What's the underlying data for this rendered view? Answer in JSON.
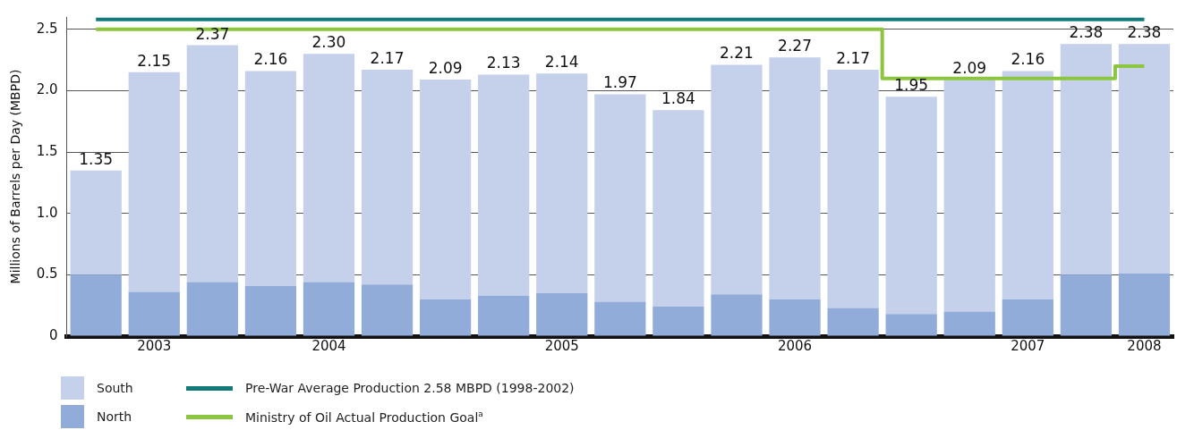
{
  "chart_data": {
    "type": "bar",
    "stacked": true,
    "ylabel": "Millions of Barrels per Day (MBPD)",
    "categories": [
      null,
      "2003",
      null,
      null,
      "2004",
      null,
      null,
      null,
      "2005",
      null,
      null,
      null,
      "2006",
      null,
      null,
      null,
      "2007",
      null,
      "2008"
    ],
    "ylim": [
      0,
      2.6
    ],
    "yticks": [
      0,
      0.5,
      {
        "value": 1,
        "label": "1.0"
      },
      1.5,
      {
        "value": 2,
        "label": "2.0"
      },
      2.5
    ],
    "grid": "y",
    "legend": "bottom",
    "marker": "none",
    "series": [
      {
        "name": "North",
        "color": "#92acd9",
        "values": [
          0.5,
          0.36,
          0.44,
          0.41,
          0.44,
          0.42,
          0.3,
          0.33,
          0.35,
          0.28,
          0.24,
          0.34,
          0.3,
          0.23,
          0.18,
          0.2,
          0.3,
          0.5,
          0.51
        ]
      },
      {
        "name": "South",
        "color": "#c5d0ea",
        "values": [
          0.85,
          1.79,
          1.93,
          1.75,
          1.86,
          1.75,
          1.79,
          1.8,
          1.79,
          1.69,
          1.6,
          1.87,
          1.97,
          1.94,
          1.77,
          1.89,
          1.86,
          1.88,
          1.87
        ]
      },
      {
        "name": "Pre-War Average Production 2.58 MBPD (1998-2002)",
        "type": "line",
        "color": "#127a78",
        "values": [
          2.58,
          2.58,
          2.58,
          2.58,
          2.58,
          2.58,
          2.58,
          2.58,
          2.58,
          2.58,
          2.58,
          2.58,
          2.58,
          2.58,
          2.58,
          2.58,
          2.58,
          2.58,
          2.58
        ]
      },
      {
        "name": "Ministry of Oil Actual Production Goal$^{a}$",
        "type": "step",
        "color": "#8cc63f",
        "values": [
          2.5,
          2.5,
          2.5,
          2.5,
          2.5,
          2.5,
          2.5,
          2.5,
          2.5,
          2.5,
          2.5,
          2.5,
          2.5,
          2.5,
          2.1,
          2.1,
          2.1,
          2.1,
          2.2
        ]
      }
    ],
    "totals": [
      "1.35",
      "2.15",
      "2.37",
      "2.16",
      "2.30",
      "2.17",
      "2.09",
      "2.13",
      "2.14",
      "1.97",
      "1.84",
      "2.21",
      "2.27",
      "2.17",
      "1.95",
      "2.09",
      "2.16",
      "2.38",
      "2.38"
    ]
  }
}
